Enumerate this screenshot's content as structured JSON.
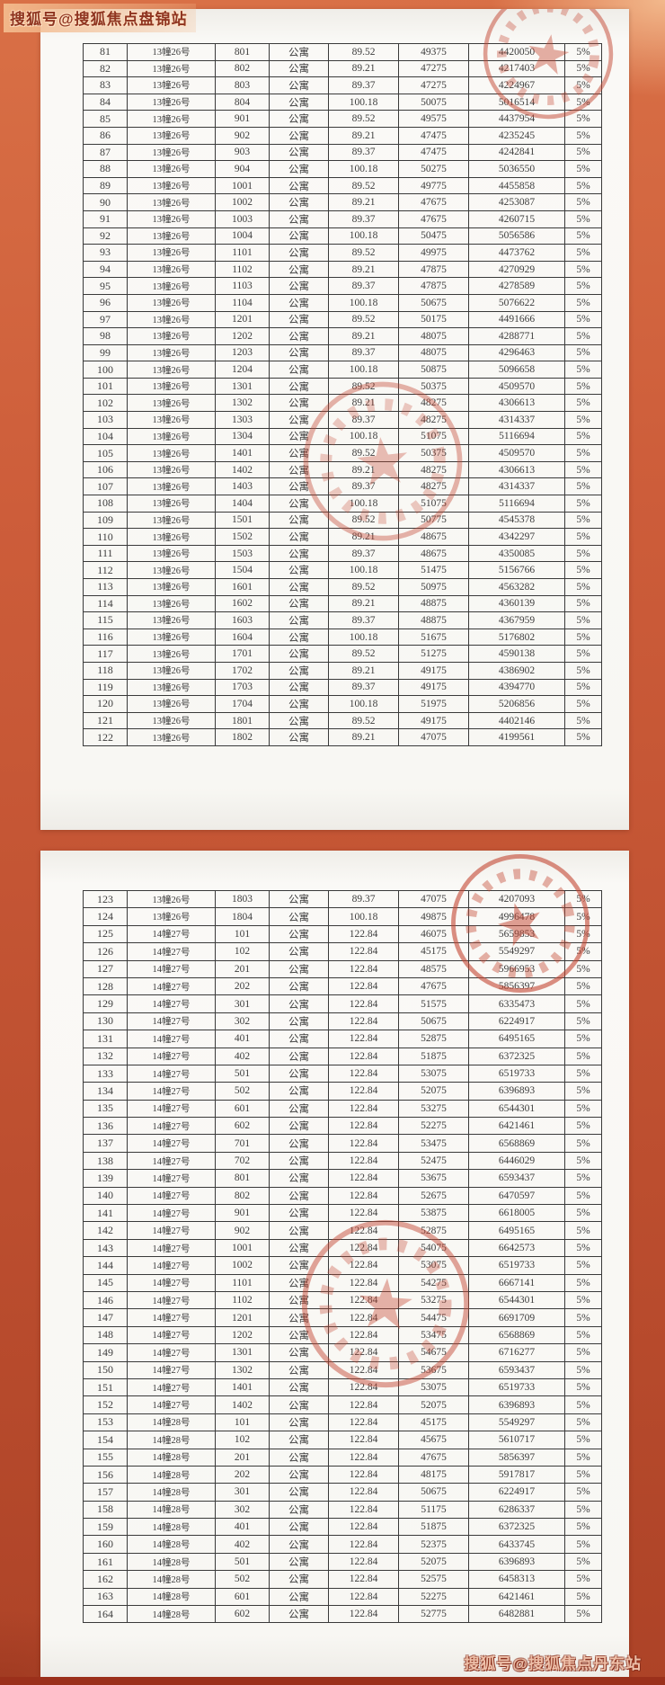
{
  "watermarks": {
    "top": "搜狐号@搜狐焦点盘锦站",
    "bottom": "搜狐号@搜狐焦点丹东站"
  },
  "document": {
    "unit_type_label": "公寓",
    "tax_rate_label": "5%",
    "pages": [
      {
        "rows": [
          [
            "81",
            "13幢26号",
            "801",
            "公寓",
            "89.52",
            "49375",
            "4420050",
            "5%"
          ],
          [
            "82",
            "13幢26号",
            "802",
            "公寓",
            "89.21",
            "47275",
            "4217403",
            "5%"
          ],
          [
            "83",
            "13幢26号",
            "803",
            "公寓",
            "89.37",
            "47275",
            "4224967",
            "5%"
          ],
          [
            "84",
            "13幢26号",
            "804",
            "公寓",
            "100.18",
            "50075",
            "5016514",
            "5%"
          ],
          [
            "85",
            "13幢26号",
            "901",
            "公寓",
            "89.52",
            "49575",
            "4437954",
            "5%"
          ],
          [
            "86",
            "13幢26号",
            "902",
            "公寓",
            "89.21",
            "47475",
            "4235245",
            "5%"
          ],
          [
            "87",
            "13幢26号",
            "903",
            "公寓",
            "89.37",
            "47475",
            "4242841",
            "5%"
          ],
          [
            "88",
            "13幢26号",
            "904",
            "公寓",
            "100.18",
            "50275",
            "5036550",
            "5%"
          ],
          [
            "89",
            "13幢26号",
            "1001",
            "公寓",
            "89.52",
            "49775",
            "4455858",
            "5%"
          ],
          [
            "90",
            "13幢26号",
            "1002",
            "公寓",
            "89.21",
            "47675",
            "4253087",
            "5%"
          ],
          [
            "91",
            "13幢26号",
            "1003",
            "公寓",
            "89.37",
            "47675",
            "4260715",
            "5%"
          ],
          [
            "92",
            "13幢26号",
            "1004",
            "公寓",
            "100.18",
            "50475",
            "5056586",
            "5%"
          ],
          [
            "93",
            "13幢26号",
            "1101",
            "公寓",
            "89.52",
            "49975",
            "4473762",
            "5%"
          ],
          [
            "94",
            "13幢26号",
            "1102",
            "公寓",
            "89.21",
            "47875",
            "4270929",
            "5%"
          ],
          [
            "95",
            "13幢26号",
            "1103",
            "公寓",
            "89.37",
            "47875",
            "4278589",
            "5%"
          ],
          [
            "96",
            "13幢26号",
            "1104",
            "公寓",
            "100.18",
            "50675",
            "5076622",
            "5%"
          ],
          [
            "97",
            "13幢26号",
            "1201",
            "公寓",
            "89.52",
            "50175",
            "4491666",
            "5%"
          ],
          [
            "98",
            "13幢26号",
            "1202",
            "公寓",
            "89.21",
            "48075",
            "4288771",
            "5%"
          ],
          [
            "99",
            "13幢26号",
            "1203",
            "公寓",
            "89.37",
            "48075",
            "4296463",
            "5%"
          ],
          [
            "100",
            "13幢26号",
            "1204",
            "公寓",
            "100.18",
            "50875",
            "5096658",
            "5%"
          ],
          [
            "101",
            "13幢26号",
            "1301",
            "公寓",
            "89.52",
            "50375",
            "4509570",
            "5%"
          ],
          [
            "102",
            "13幢26号",
            "1302",
            "公寓",
            "89.21",
            "48275",
            "4306613",
            "5%"
          ],
          [
            "103",
            "13幢26号",
            "1303",
            "公寓",
            "89.37",
            "48275",
            "4314337",
            "5%"
          ],
          [
            "104",
            "13幢26号",
            "1304",
            "公寓",
            "100.18",
            "51075",
            "5116694",
            "5%"
          ],
          [
            "105",
            "13幢26号",
            "1401",
            "公寓",
            "89.52",
            "50375",
            "4509570",
            "5%"
          ],
          [
            "106",
            "13幢26号",
            "1402",
            "公寓",
            "89.21",
            "48275",
            "4306613",
            "5%"
          ],
          [
            "107",
            "13幢26号",
            "1403",
            "公寓",
            "89.37",
            "48275",
            "4314337",
            "5%"
          ],
          [
            "108",
            "13幢26号",
            "1404",
            "公寓",
            "100.18",
            "51075",
            "5116694",
            "5%"
          ],
          [
            "109",
            "13幢26号",
            "1501",
            "公寓",
            "89.52",
            "50775",
            "4545378",
            "5%"
          ],
          [
            "110",
            "13幢26号",
            "1502",
            "公寓",
            "89.21",
            "48675",
            "4342297",
            "5%"
          ],
          [
            "111",
            "13幢26号",
            "1503",
            "公寓",
            "89.37",
            "48675",
            "4350085",
            "5%"
          ],
          [
            "112",
            "13幢26号",
            "1504",
            "公寓",
            "100.18",
            "51475",
            "5156766",
            "5%"
          ],
          [
            "113",
            "13幢26号",
            "1601",
            "公寓",
            "89.52",
            "50975",
            "4563282",
            "5%"
          ],
          [
            "114",
            "13幢26号",
            "1602",
            "公寓",
            "89.21",
            "48875",
            "4360139",
            "5%"
          ],
          [
            "115",
            "13幢26号",
            "1603",
            "公寓",
            "89.37",
            "48875",
            "4367959",
            "5%"
          ],
          [
            "116",
            "13幢26号",
            "1604",
            "公寓",
            "100.18",
            "51675",
            "5176802",
            "5%"
          ],
          [
            "117",
            "13幢26号",
            "1701",
            "公寓",
            "89.52",
            "51275",
            "4590138",
            "5%"
          ],
          [
            "118",
            "13幢26号",
            "1702",
            "公寓",
            "89.21",
            "49175",
            "4386902",
            "5%"
          ],
          [
            "119",
            "13幢26号",
            "1703",
            "公寓",
            "89.37",
            "49175",
            "4394770",
            "5%"
          ],
          [
            "120",
            "13幢26号",
            "1704",
            "公寓",
            "100.18",
            "51975",
            "5206856",
            "5%"
          ],
          [
            "121",
            "13幢26号",
            "1801",
            "公寓",
            "89.52",
            "49175",
            "4402146",
            "5%"
          ],
          [
            "122",
            "13幢26号",
            "1802",
            "公寓",
            "89.21",
            "47075",
            "4199561",
            "5%"
          ]
        ]
      },
      {
        "rows": [
          [
            "123",
            "13幢26号",
            "1803",
            "公寓",
            "89.37",
            "47075",
            "4207093",
            "5%"
          ],
          [
            "124",
            "13幢26号",
            "1804",
            "公寓",
            "100.18",
            "49875",
            "4996478",
            "5%"
          ],
          [
            "125",
            "14幢27号",
            "101",
            "公寓",
            "122.84",
            "46075",
            "5659853",
            "5%"
          ],
          [
            "126",
            "14幢27号",
            "102",
            "公寓",
            "122.84",
            "45175",
            "5549297",
            "5%"
          ],
          [
            "127",
            "14幢27号",
            "201",
            "公寓",
            "122.84",
            "48575",
            "5966953",
            "5%"
          ],
          [
            "128",
            "14幢27号",
            "202",
            "公寓",
            "122.84",
            "47675",
            "5856397",
            "5%"
          ],
          [
            "129",
            "14幢27号",
            "301",
            "公寓",
            "122.84",
            "51575",
            "6335473",
            "5%"
          ],
          [
            "130",
            "14幢27号",
            "302",
            "公寓",
            "122.84",
            "50675",
            "6224917",
            "5%"
          ],
          [
            "131",
            "14幢27号",
            "401",
            "公寓",
            "122.84",
            "52875",
            "6495165",
            "5%"
          ],
          [
            "132",
            "14幢27号",
            "402",
            "公寓",
            "122.84",
            "51875",
            "6372325",
            "5%"
          ],
          [
            "133",
            "14幢27号",
            "501",
            "公寓",
            "122.84",
            "53075",
            "6519733",
            "5%"
          ],
          [
            "134",
            "14幢27号",
            "502",
            "公寓",
            "122.84",
            "52075",
            "6396893",
            "5%"
          ],
          [
            "135",
            "14幢27号",
            "601",
            "公寓",
            "122.84",
            "53275",
            "6544301",
            "5%"
          ],
          [
            "136",
            "14幢27号",
            "602",
            "公寓",
            "122.84",
            "52275",
            "6421461",
            "5%"
          ],
          [
            "137",
            "14幢27号",
            "701",
            "公寓",
            "122.84",
            "53475",
            "6568869",
            "5%"
          ],
          [
            "138",
            "14幢27号",
            "702",
            "公寓",
            "122.84",
            "52475",
            "6446029",
            "5%"
          ],
          [
            "139",
            "14幢27号",
            "801",
            "公寓",
            "122.84",
            "53675",
            "6593437",
            "5%"
          ],
          [
            "140",
            "14幢27号",
            "802",
            "公寓",
            "122.84",
            "52675",
            "6470597",
            "5%"
          ],
          [
            "141",
            "14幢27号",
            "901",
            "公寓",
            "122.84",
            "53875",
            "6618005",
            "5%"
          ],
          [
            "142",
            "14幢27号",
            "902",
            "公寓",
            "122.84",
            "52875",
            "6495165",
            "5%"
          ],
          [
            "143",
            "14幢27号",
            "1001",
            "公寓",
            "122.84",
            "54075",
            "6642573",
            "5%"
          ],
          [
            "144",
            "14幢27号",
            "1002",
            "公寓",
            "122.84",
            "53075",
            "6519733",
            "5%"
          ],
          [
            "145",
            "14幢27号",
            "1101",
            "公寓",
            "122.84",
            "54275",
            "6667141",
            "5%"
          ],
          [
            "146",
            "14幢27号",
            "1102",
            "公寓",
            "122.84",
            "53275",
            "6544301",
            "5%"
          ],
          [
            "147",
            "14幢27号",
            "1201",
            "公寓",
            "122.84",
            "54475",
            "6691709",
            "5%"
          ],
          [
            "148",
            "14幢27号",
            "1202",
            "公寓",
            "122.84",
            "53475",
            "6568869",
            "5%"
          ],
          [
            "149",
            "14幢27号",
            "1301",
            "公寓",
            "122.84",
            "54675",
            "6716277",
            "5%"
          ],
          [
            "150",
            "14幢27号",
            "1302",
            "公寓",
            "122.84",
            "53675",
            "6593437",
            "5%"
          ],
          [
            "151",
            "14幢27号",
            "1401",
            "公寓",
            "122.84",
            "53075",
            "6519733",
            "5%"
          ],
          [
            "152",
            "14幢27号",
            "1402",
            "公寓",
            "122.84",
            "52075",
            "6396893",
            "5%"
          ],
          [
            "153",
            "14幢28号",
            "101",
            "公寓",
            "122.84",
            "45175",
            "5549297",
            "5%"
          ],
          [
            "154",
            "14幢28号",
            "102",
            "公寓",
            "122.84",
            "45675",
            "5610717",
            "5%"
          ],
          [
            "155",
            "14幢28号",
            "201",
            "公寓",
            "122.84",
            "47675",
            "5856397",
            "5%"
          ],
          [
            "156",
            "14幢28号",
            "202",
            "公寓",
            "122.84",
            "48175",
            "5917817",
            "5%"
          ],
          [
            "157",
            "14幢28号",
            "301",
            "公寓",
            "122.84",
            "50675",
            "6224917",
            "5%"
          ],
          [
            "158",
            "14幢28号",
            "302",
            "公寓",
            "122.84",
            "51175",
            "6286337",
            "5%"
          ],
          [
            "159",
            "14幢28号",
            "401",
            "公寓",
            "122.84",
            "51875",
            "6372325",
            "5%"
          ],
          [
            "160",
            "14幢28号",
            "402",
            "公寓",
            "122.84",
            "52375",
            "6433745",
            "5%"
          ],
          [
            "161",
            "14幢28号",
            "501",
            "公寓",
            "122.84",
            "52075",
            "6396893",
            "5%"
          ],
          [
            "162",
            "14幢28号",
            "502",
            "公寓",
            "122.84",
            "52575",
            "6458313",
            "5%"
          ],
          [
            "163",
            "14幢28号",
            "601",
            "公寓",
            "122.84",
            "52275",
            "6421461",
            "5%"
          ],
          [
            "164",
            "14幢28号",
            "602",
            "公寓",
            "122.84",
            "52775",
            "6482881",
            "5%"
          ]
        ]
      }
    ]
  },
  "decorations": {
    "red_seal_stamp_count": 4,
    "seal_color": "#c44733"
  },
  "colors": {
    "background_orange": "#c65737",
    "bottom_bar": "#9b301b",
    "paper": "#f8f7f3",
    "table_border": "#3a3a3a",
    "watermark_top_color": "#8f3420",
    "watermark_bottom_color": "#eec0a9"
  }
}
